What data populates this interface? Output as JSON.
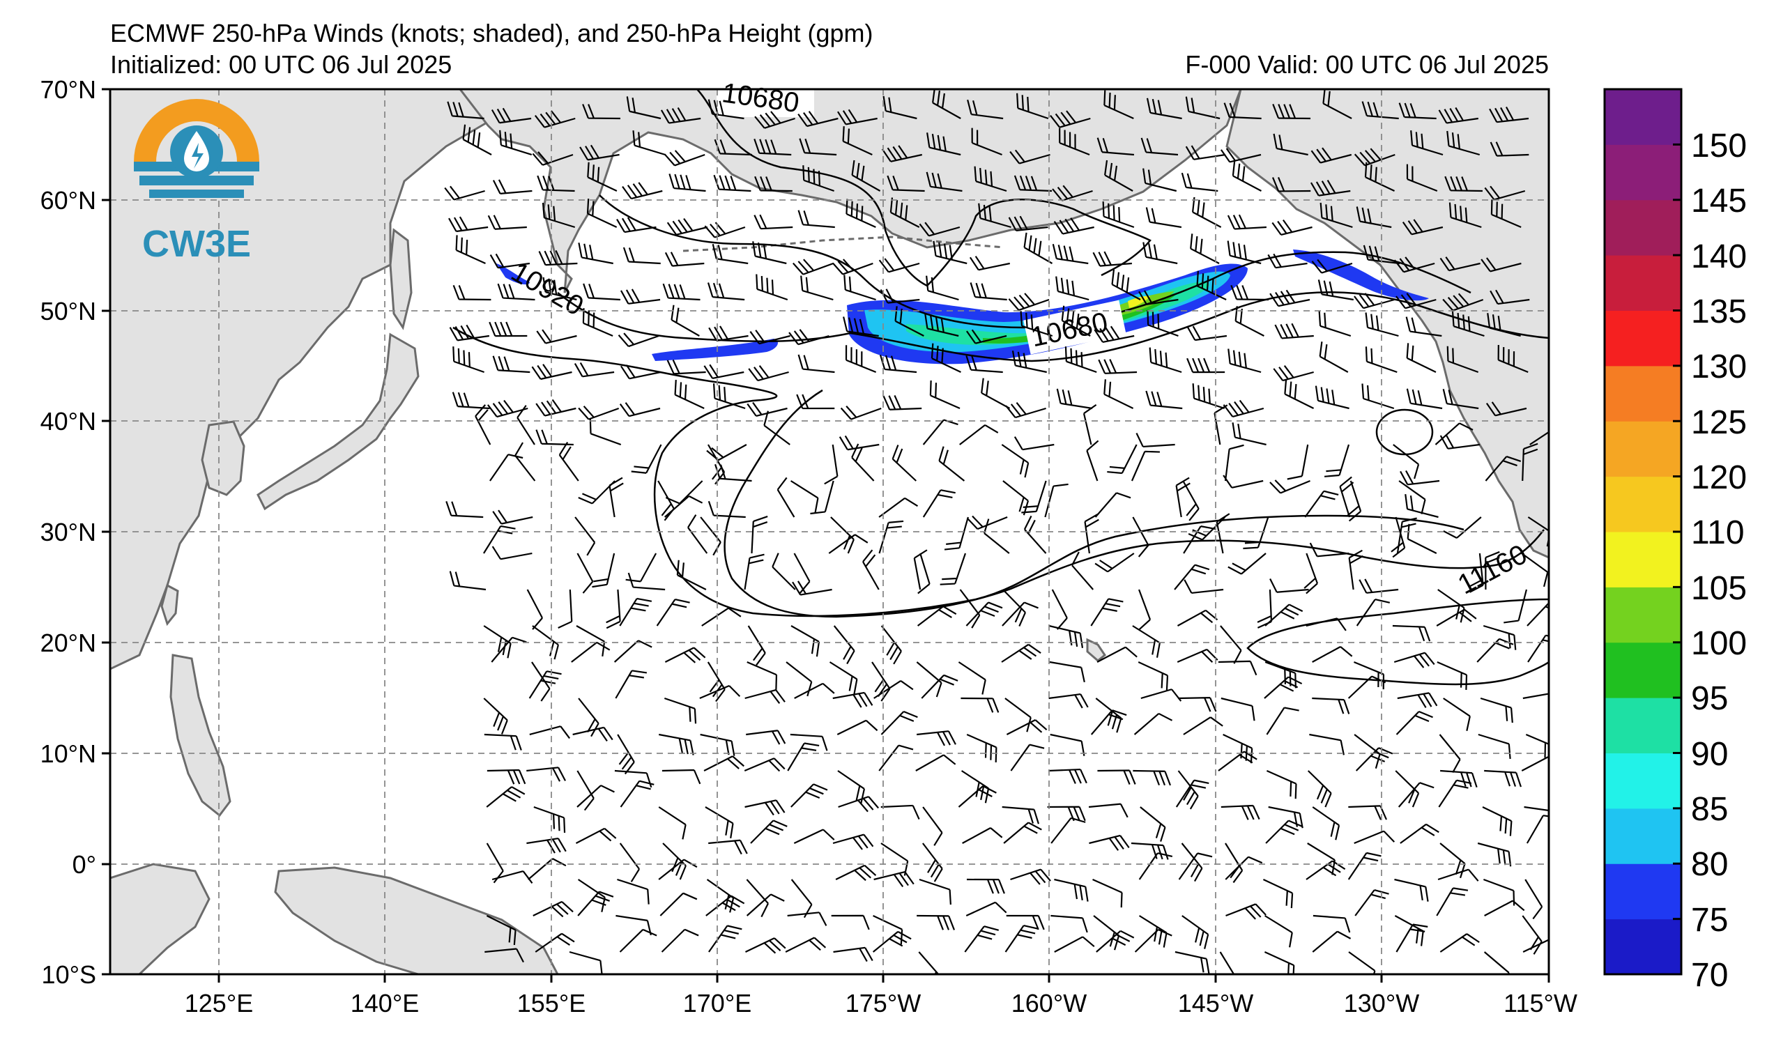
{
  "header": {
    "title": "ECMWF 250-hPa Winds (knots; shaded), and 250-hPa Height (gpm)",
    "initialized": "Initialized: 00 UTC 06 Jul 2025",
    "valid": "F-000  Valid: 00 UTC 06 Jul 2025"
  },
  "logo": {
    "text": "CW3E",
    "icon": "water-drop-sun-icon",
    "colors": {
      "sun": "#f39c1f",
      "waves": "#2b8fb8"
    }
  },
  "map": {
    "lat_labels": [
      "70°N",
      "60°N",
      "50°N",
      "40°N",
      "30°N",
      "20°N",
      "10°N",
      "0°",
      "10°S"
    ],
    "lon_labels": [
      "125°E",
      "140°E",
      "155°E",
      "170°E",
      "175°W",
      "160°W",
      "145°W",
      "130°W",
      "115°W"
    ],
    "contour_labels": [
      "10680",
      "10920",
      "10680",
      "11160"
    ],
    "colors": {
      "land": "#e2e2e2",
      "coast": "#6b6b6b",
      "grid": "#888888"
    }
  },
  "colorbar": {
    "tick_labels": [
      "150",
      "145",
      "140",
      "135",
      "130",
      "125",
      "120",
      "110",
      "105",
      "100",
      "95",
      "90",
      "85",
      "80",
      "75",
      "70"
    ],
    "colors_bottom_to_top": [
      "#1b1bc8",
      "#1f39f2",
      "#1fc4f2",
      "#22f2e8",
      "#1ee0a4",
      "#20c020",
      "#74d21f",
      "#f2f21f",
      "#f6c81f",
      "#f5a623",
      "#f57d23",
      "#f52020",
      "#c81e3c",
      "#a01e5a",
      "#8c1e78",
      "#6e1e8c"
    ]
  }
}
